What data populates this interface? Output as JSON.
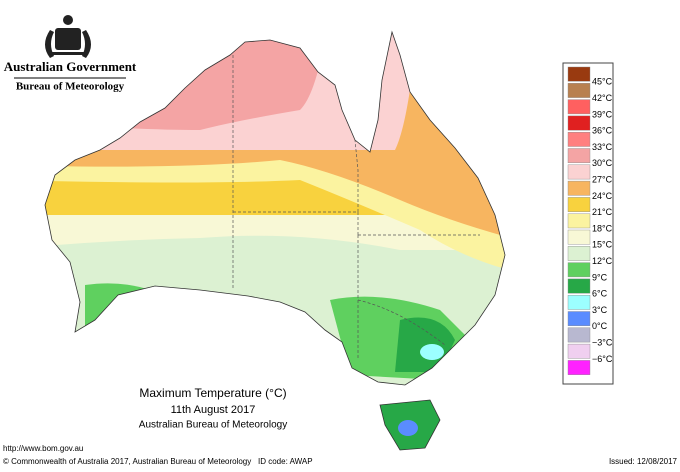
{
  "header": {
    "government": "Australian Government",
    "agency": "Bureau of Meteorology"
  },
  "map": {
    "title": "Maximum Temperature (°C)",
    "date": "11th August 2017",
    "source": "Australian Bureau of Meteorology"
  },
  "scale": {
    "colors": [
      "#993a10",
      "#b88050",
      "#ff6060",
      "#e02020",
      "#ff8080",
      "#f4a4a4",
      "#fbd2d2",
      "#f7b560",
      "#f8d23e",
      "#fbf3a0",
      "#f8f8d6",
      "#dcf1d2",
      "#5fd05f",
      "#27a847",
      "#9cffff",
      "#5a8cff",
      "#b8b8d0",
      "#f0cff0",
      "#ff22ff"
    ],
    "labels": [
      "45°C",
      "42°C",
      "39°C",
      "36°C",
      "33°C",
      "30°C",
      "27°C",
      "24°C",
      "21°C",
      "18°C",
      "15°C",
      "12°C",
      "9°C",
      "6°C",
      "3°C",
      "0°C",
      "−3°C",
      "−6°C"
    ]
  },
  "footer": {
    "url": "http://www.bom.gov.au",
    "copyright": "© Commonwealth of Australia 2017, Australian Bureau of Meteorology",
    "id_code": "ID code: AWAP",
    "issued": "Issued: 12/08/2017"
  }
}
